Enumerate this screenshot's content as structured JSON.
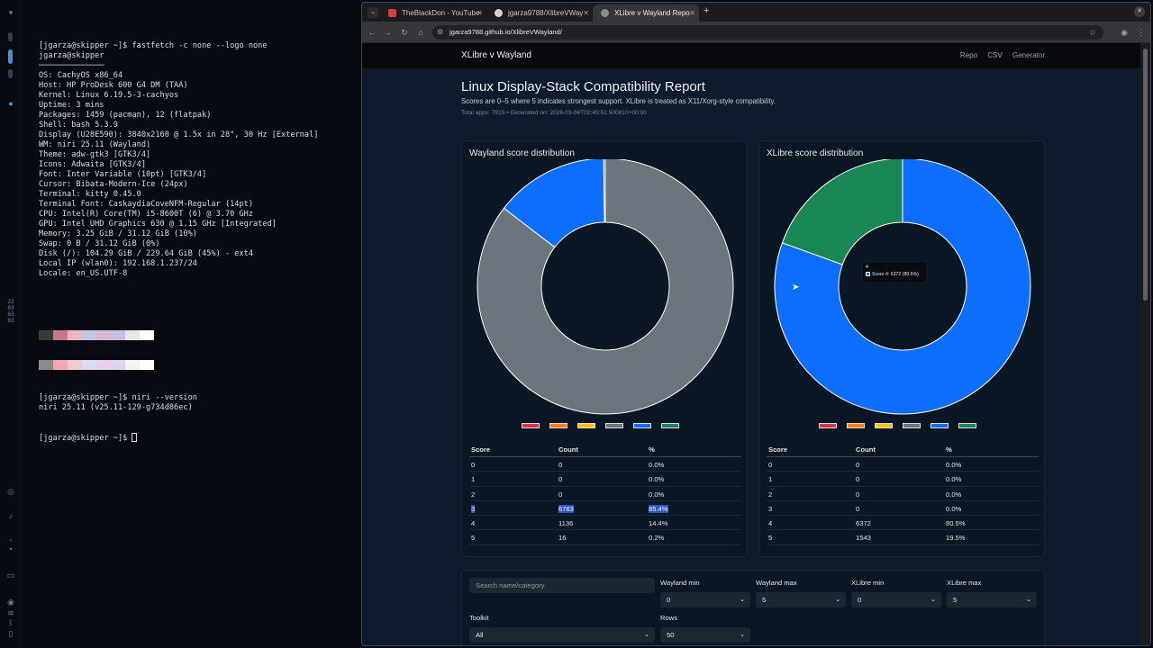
{
  "terminal": {
    "lines": [
      "[jgarza@skipper ~]$ fastfetch -c none --logo none",
      "jgarza@skipper",
      "──────────────",
      "OS: CachyOS x86_64",
      "Host: HP ProDesk 600 G4 DM (TAA)",
      "Kernel: Linux 6.19.5-3-cachyos",
      "Uptime: 3 mins",
      "Packages: 1459 (pacman), 12 (flatpak)",
      "Shell: bash 5.3.9",
      "Display (U28E590): 3840x2160 @ 1.5x in 28\", 30 Hz [External]",
      "WM: niri 25.11 (Wayland)",
      "Theme: adw-gtk3 [GTK3/4]",
      "Icons: Adwaita [GTK3/4]",
      "Font: Inter Variable (10pt) [GTK3/4]",
      "Cursor: Bibata-Modern-Ice (24px)",
      "Terminal: kitty 0.45.0",
      "Terminal Font: CaskaydiaCoveNFM-Regular (14pt)",
      "CPU: Intel(R) Core(TM) i5-8600T (6) @ 3.70 GHz",
      "GPU: Intel UHD Graphics 630 @ 1.15 GHz [Integrated]",
      "Memory: 3.25 GiB / 31.12 GiB (10%)",
      "Swap: 0 B / 31.12 GiB (0%)",
      "Disk (/): 104.29 GiB / 229.64 GiB (45%) - ext4",
      "Local IP (wlan0): 192.168.1.237/24",
      "Locale: en_US.UTF-8"
    ],
    "after_lines": [
      "[jgarza@skipper ~]$ niri --version",
      "niri 25.11 (v25.11-129-g734d86ec)"
    ],
    "prompt": "[jgarza@skipper ~]$ ",
    "palette_row1": [
      "#3a3a3a",
      "#c97a86",
      "#e9b7c0",
      "#c2c7e6",
      "#d8b8d4",
      "#c8c0e0",
      "#e6e6ee",
      "#ffffff"
    ],
    "palette_row2": [
      "#8a8a8a",
      "#f2a6b2",
      "#f0c9d1",
      "#d8dcf2",
      "#e8cde6",
      "#dcd4ef",
      "#f2f2f7",
      "#ffffff"
    ]
  },
  "dock": {
    "clock": [
      "22",
      "03",
      "03",
      "03"
    ]
  },
  "browser": {
    "tabs": [
      {
        "label": "TheBlackDon - YouTube",
        "fav_color": "#e53935"
      },
      {
        "label": "jgarza9788/XlibreVWay",
        "fav_color": "#d0d0d0"
      },
      {
        "label": "XLibre v Wayland Repo",
        "fav_color": "#8a8f96"
      }
    ],
    "url": "jgarza9788.github.io/XlibreVWayland/"
  },
  "page": {
    "brand": "XLibre v Wayland",
    "nav_links": [
      "Repo",
      "CSV",
      "Generator"
    ],
    "title": "Linux Display-Stack Compatibility Report",
    "subtitle": "Scores are 0–5 where 5 indicates strongest support. XLibre is treated as X11/Xorg-style compatibility.",
    "meta": "Total apps: 7915 • Generated on: 2026-03-04T02:45:51.500810+00:00",
    "table_headers": [
      "Score",
      "Count",
      "%"
    ],
    "legend_colors": [
      "#dc3545",
      "#fd7e14",
      "#ffc107",
      "#6c757d",
      "#0d6efd",
      "#198754"
    ],
    "tooltip": {
      "head": "4",
      "text": "Score 4: 6372 (80.5%)"
    }
  },
  "chart_data": [
    {
      "type": "pie",
      "title": "Wayland score distribution",
      "categories": [
        "0",
        "1",
        "2",
        "3",
        "4",
        "5"
      ],
      "values": [
        0,
        0,
        0,
        6763,
        1136,
        16
      ],
      "colors": [
        "#dc3545",
        "#fd7e14",
        "#ffc107",
        "#6c757d",
        "#0d6efd",
        "#198754"
      ],
      "rows": [
        {
          "score": "0",
          "count": "0",
          "pct": "0.0%"
        },
        {
          "score": "1",
          "count": "0",
          "pct": "0.0%"
        },
        {
          "score": "2",
          "count": "0",
          "pct": "0.0%"
        },
        {
          "score": "3",
          "count": "6763",
          "pct": "85.4%"
        },
        {
          "score": "4",
          "count": "1136",
          "pct": "14.4%"
        },
        {
          "score": "5",
          "count": "16",
          "pct": "0.2%"
        }
      ],
      "highlight_row": 3
    },
    {
      "type": "pie",
      "title": "XLibre score distribution",
      "categories": [
        "0",
        "1",
        "2",
        "3",
        "4",
        "5"
      ],
      "values": [
        0,
        0,
        0,
        0,
        6372,
        1543
      ],
      "colors": [
        "#dc3545",
        "#fd7e14",
        "#ffc107",
        "#6c757d",
        "#0d6efd",
        "#198754"
      ],
      "rows": [
        {
          "score": "0",
          "count": "0",
          "pct": "0.0%"
        },
        {
          "score": "1",
          "count": "0",
          "pct": "0.0%"
        },
        {
          "score": "2",
          "count": "0",
          "pct": "0.0%"
        },
        {
          "score": "3",
          "count": "0",
          "pct": "0.0%"
        },
        {
          "score": "4",
          "count": "6372",
          "pct": "80.5%"
        },
        {
          "score": "5",
          "count": "1543",
          "pct": "19.5%"
        }
      ],
      "highlight_row": -1
    }
  ],
  "filters": {
    "search_placeholder": "Search name/category",
    "wayland_min_label": "Wayland min",
    "wayland_min_value": "0",
    "wayland_max_label": "Wayland max",
    "wayland_max_value": "5",
    "xlibre_min_label": "XLibre min",
    "xlibre_min_value": "0",
    "xlibre_max_label": "XLibre max",
    "xlibre_max_value": "5",
    "toolkit_label": "Toolkit",
    "toolkit_value": "All",
    "rows_label": "Rows",
    "rows_value": "50"
  }
}
